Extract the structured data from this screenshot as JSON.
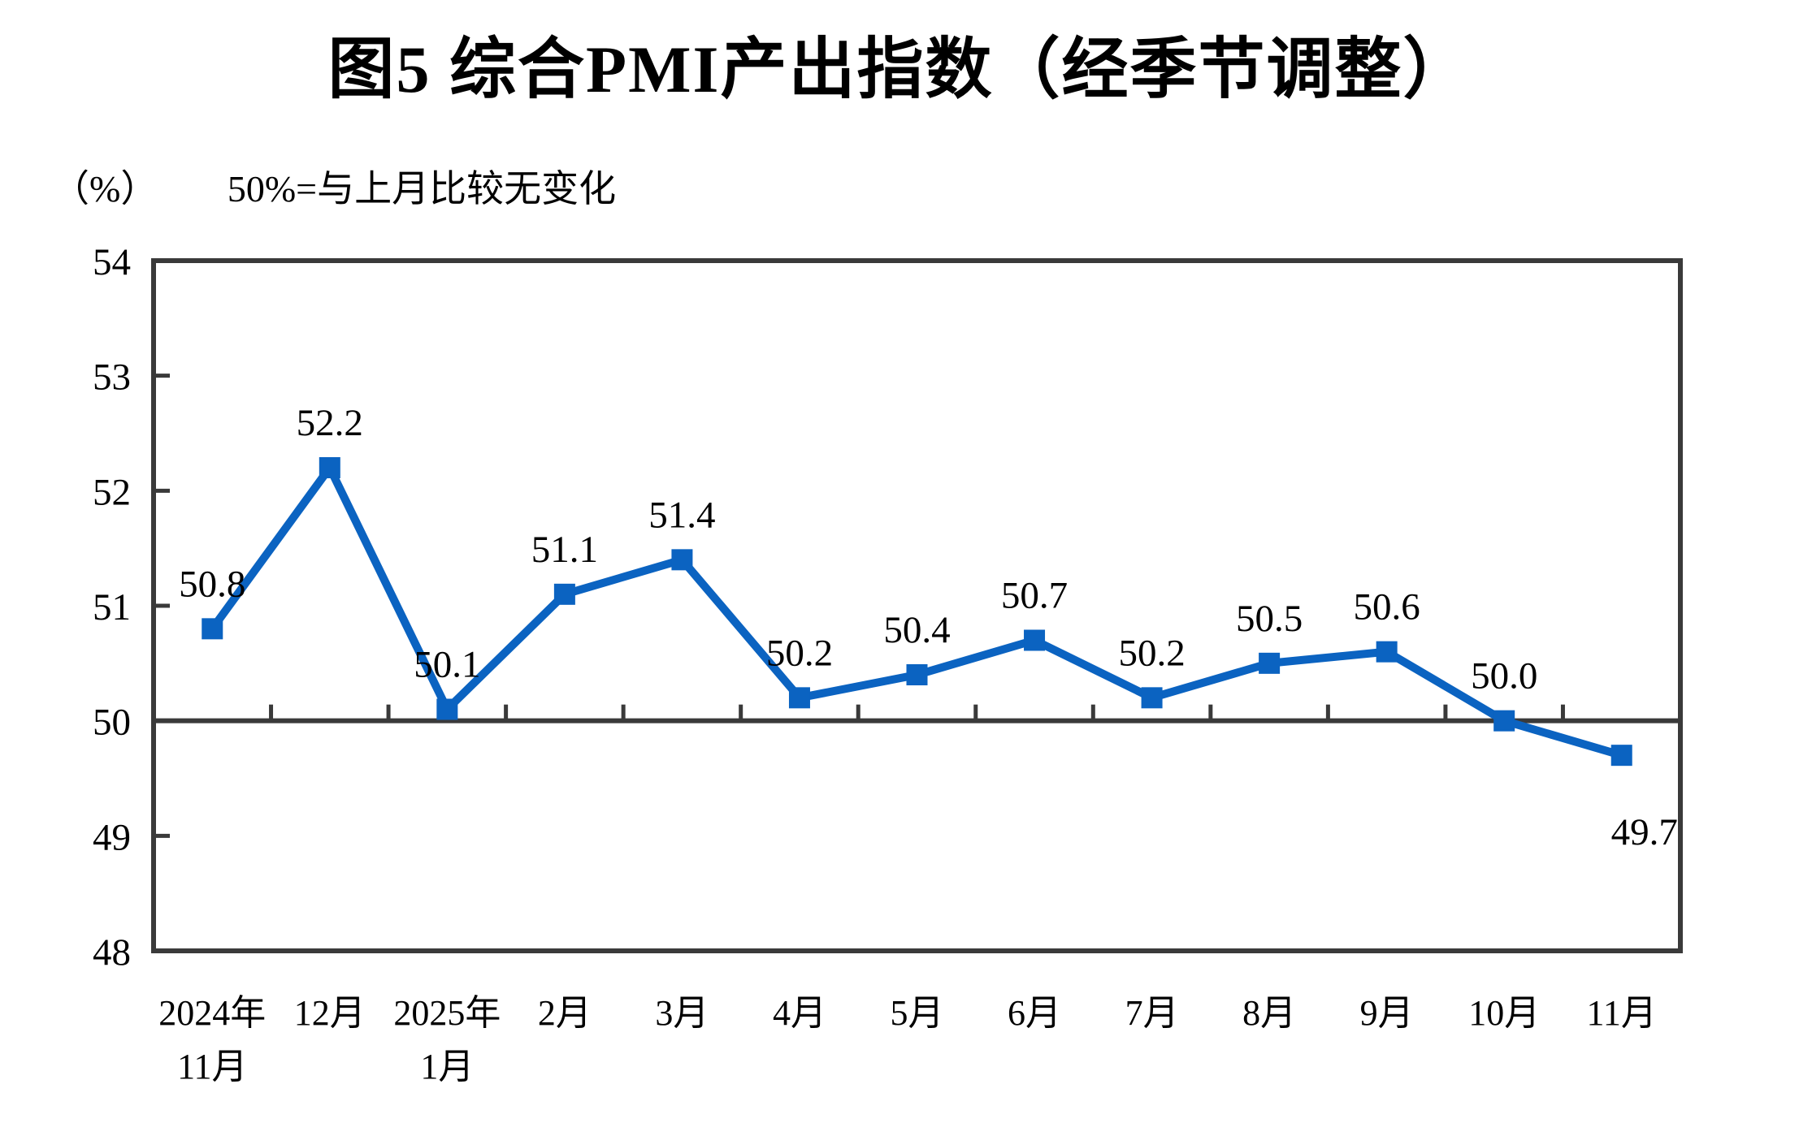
{
  "title": "图5  综合PMI产出指数（经季节调整）",
  "subtitle": {
    "unit": "（%）",
    "note": "50%=与上月比较无变化"
  },
  "chart_data": {
    "type": "line",
    "title": "图5  综合PMI产出指数（经季节调整）",
    "unit_label": "（%）",
    "annotation": "50%=与上月比较无变化",
    "categories": [
      [
        "2024年",
        "11月"
      ],
      [
        "12月"
      ],
      [
        "2025年",
        "1月"
      ],
      [
        "2月"
      ],
      [
        "3月"
      ],
      [
        "4月"
      ],
      [
        "5月"
      ],
      [
        "6月"
      ],
      [
        "7月"
      ],
      [
        "8月"
      ],
      [
        "9月"
      ],
      [
        "10月"
      ],
      [
        "11月"
      ]
    ],
    "series": [
      {
        "name": "综合PMI产出指数",
        "values": [
          50.8,
          52.2,
          50.1,
          51.1,
          51.4,
          50.2,
          50.4,
          50.7,
          50.2,
          50.5,
          50.6,
          50.0,
          49.7
        ]
      }
    ],
    "data_labels": [
      "50.8",
      "52.2",
      "50.1",
      "51.1",
      "51.4",
      "50.2",
      "50.4",
      "50.7",
      "50.2",
      "50.5",
      "50.6",
      "50.0",
      "49.7"
    ],
    "ylim": [
      48,
      54
    ],
    "yticks": [
      48,
      49,
      50,
      51,
      52,
      53,
      54
    ],
    "reference_line": 50,
    "grid": false,
    "legend": "none",
    "line_color": "#0B63C1",
    "axis_color": "#3A3A3A",
    "text_color": "#000000"
  }
}
